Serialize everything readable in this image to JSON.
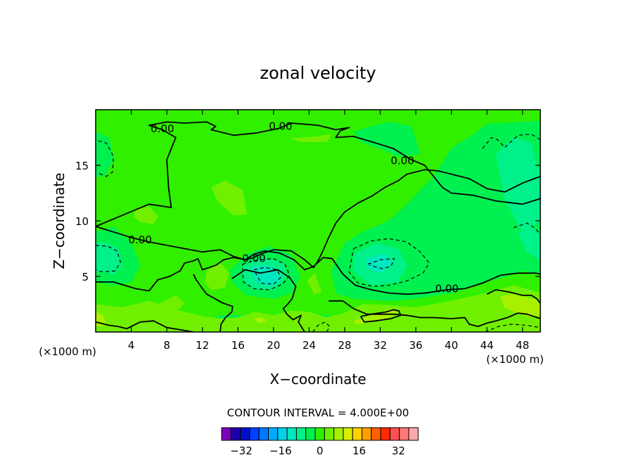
{
  "chart_data": {
    "type": "heatmap",
    "title": "zonal velocity",
    "xlabel": "X−coordinate",
    "ylabel": "Z−coordinate",
    "x_unit_left": "(×1000 m)",
    "x_unit_right": "(×1000 m)",
    "xlim": [
      0,
      50
    ],
    "ylim": [
      0,
      20
    ],
    "x_ticks": [
      4,
      8,
      12,
      16,
      20,
      24,
      28,
      32,
      36,
      40,
      44,
      48
    ],
    "y_ticks": [
      5,
      10,
      15
    ],
    "contour_interval_text": "CONTOUR INTERVAL = 4.000E+00",
    "contour_labels": [
      {
        "text": "0.00",
        "x": 7.5,
        "z": 18.3
      },
      {
        "text": "0.00",
        "x": 20.8,
        "z": 18.5
      },
      {
        "text": "0.00",
        "x": 34.5,
        "z": 15.4
      },
      {
        "text": "0.00",
        "x": 5.0,
        "z": 8.3
      },
      {
        "text": "0.00",
        "x": 17.8,
        "z": 6.6
      },
      {
        "text": "0.00",
        "x": 39.5,
        "z": 3.9
      }
    ],
    "colorbar": {
      "colors": [
        "#8000c0",
        "#1e00a8",
        "#0010c8",
        "#0040ff",
        "#0078ff",
        "#00aaff",
        "#00d4e8",
        "#00e8c0",
        "#00f08a",
        "#00f050",
        "#30f000",
        "#70f000",
        "#a8f000",
        "#d8ee00",
        "#ffd000",
        "#ffa000",
        "#ff6000",
        "#ff2a00",
        "#ff5050",
        "#ff7878",
        "#ffa8a8"
      ],
      "tick_labels": [
        "−32",
        "−16",
        "0",
        "16",
        "32"
      ],
      "tick_values": [
        -32,
        -16,
        0,
        16,
        32
      ]
    },
    "regions": [
      {
        "level": 0,
        "color": "#30f000",
        "xs": [
          0,
          50,
          50,
          0
        ],
        "zs": [
          0,
          0,
          20,
          20
        ]
      },
      {
        "level": -4,
        "color": "#00f050",
        "xs": [
          50,
          44,
          42,
          40,
          38,
          35,
          33,
          30,
          28,
          26.5,
          27,
          29,
          33,
          36,
          40,
          44,
          48,
          50
        ],
        "zs": [
          19,
          18.7,
          17.5,
          16.5,
          14,
          11.5,
          10,
          9,
          8,
          5.5,
          3.5,
          3,
          2.8,
          3,
          3.5,
          4.5,
          5.5,
          5.2
        ]
      },
      {
        "level": -4,
        "color": "#00f050",
        "xs": [
          0,
          2,
          4,
          5,
          4,
          2,
          0
        ],
        "zs": [
          9,
          9.5,
          8,
          6,
          4.5,
          4.2,
          4.5
        ]
      },
      {
        "level": -4,
        "color": "#00f050",
        "xs": [
          0,
          1.5,
          2,
          1,
          0
        ],
        "zs": [
          18,
          17.5,
          15.5,
          14,
          14
        ]
      },
      {
        "level": -4,
        "color": "#00f050",
        "xs": [
          15,
          17,
          19.5,
          22,
          23,
          22,
          20,
          17,
          15.5
        ],
        "zs": [
          5.5,
          7,
          7.7,
          7,
          5,
          3.5,
          3,
          3.3,
          4.3
        ]
      },
      {
        "level": -4,
        "color": "#00f050",
        "xs": [
          31,
          33,
          35.5,
          36.5,
          34,
          32,
          30,
          29
        ],
        "zs": [
          18.5,
          18.9,
          18.5,
          16,
          15.8,
          16.5,
          17,
          18
        ]
      },
      {
        "level": -4,
        "color": "#00f050",
        "xs": [
          12,
          14,
          16,
          17,
          14,
          12
        ],
        "zs": [
          0,
          0,
          0,
          1.5,
          1.5,
          0.8
        ]
      },
      {
        "level": -4,
        "color": "#00f050",
        "xs": [
          24,
          26,
          27.5,
          27,
          25.5,
          24
        ],
        "zs": [
          0,
          0,
          0,
          1.2,
          1.6,
          1
        ]
      },
      {
        "level": -4,
        "color": "#00f050",
        "xs": [
          36,
          39,
          40,
          39,
          37,
          36
        ],
        "zs": [
          0,
          0,
          0,
          0.8,
          1,
          0.6
        ]
      },
      {
        "level": -4,
        "color": "#00f050",
        "xs": [
          42,
          46,
          49,
          50,
          50,
          47,
          44,
          42
        ],
        "zs": [
          0,
          0,
          0,
          0,
          1.2,
          1.8,
          1.5,
          0.8
        ]
      },
      {
        "level": -8,
        "color": "#00f08a",
        "xs": [
          29,
          31.5,
          34,
          35,
          34,
          31,
          29
        ],
        "zs": [
          7,
          8,
          7.5,
          6,
          4.5,
          4.2,
          5.5
        ]
      },
      {
        "level": -8,
        "color": "#00f08a",
        "xs": [
          45,
          47,
          49,
          50,
          50,
          48,
          46
        ],
        "zs": [
          16,
          17.5,
          17,
          14,
          10,
          9,
          12
        ]
      },
      {
        "level": -8,
        "color": "#00f08a",
        "xs": [
          0,
          1.2,
          2.5,
          3,
          2,
          0
        ],
        "zs": [
          8,
          8,
          7.5,
          6,
          5.2,
          5.5
        ]
      },
      {
        "level": -8,
        "color": "#00f08a",
        "xs": [
          16.5,
          18.5,
          21,
          21.5,
          20,
          17.5,
          16.5
        ],
        "zs": [
          5.8,
          6.7,
          6.3,
          5,
          3.8,
          3.9,
          4.8
        ]
      },
      {
        "level": -8,
        "color": "#00f08a",
        "xs": [
          47.5,
          49,
          50,
          50,
          48.5
        ],
        "zs": [
          9,
          9.5,
          8.8,
          6.5,
          7.2
        ]
      },
      {
        "level": -12,
        "color": "#00e8c0",
        "xs": [
          17.5,
          19,
          20.5,
          20.8,
          19.5,
          18
        ],
        "zs": [
          5.8,
          6,
          5.6,
          4.6,
          4.1,
          4.6
        ]
      },
      {
        "level": -12,
        "color": "#00e8c0",
        "xs": [
          30.5,
          32.5,
          33.5,
          32,
          30.5
        ],
        "zs": [
          6.6,
          7,
          6.2,
          5.3,
          5.8
        ]
      },
      {
        "level": 4,
        "color": "#70f000",
        "xs": [
          0,
          3,
          6,
          8,
          10,
          12,
          14,
          16,
          18,
          20,
          22,
          24,
          26,
          28,
          30,
          33,
          36,
          40,
          44,
          47,
          50,
          50,
          0
        ],
        "zs": [
          2.5,
          2.2,
          2.8,
          2.2,
          1.8,
          1.4,
          1.2,
          1.3,
          1.8,
          1.5,
          1.9,
          1.8,
          1.3,
          1.7,
          2.5,
          2.4,
          2.2,
          2.8,
          3.5,
          4.2,
          3.5,
          0,
          0
        ]
      },
      {
        "level": 4,
        "color": "#70f000",
        "xs": [
          12.5,
          14,
          15,
          14.5,
          13,
          12.3
        ],
        "zs": [
          5.5,
          6.2,
          5.3,
          4,
          3.8,
          4.5
        ]
      },
      {
        "level": 4,
        "color": "#70f000",
        "xs": [
          4.5,
          6,
          7,
          6.5,
          5,
          4.3
        ],
        "zs": [
          11,
          11.3,
          10.4,
          9.7,
          9.9,
          10.4
        ]
      },
      {
        "level": 4,
        "color": "#70f000",
        "xs": [
          13,
          14.5,
          16.5,
          17,
          15.5,
          13.8
        ],
        "zs": [
          13,
          13.6,
          12.8,
          10.6,
          10.5,
          11.7
        ]
      },
      {
        "level": 4,
        "color": "#70f000",
        "xs": [
          23.8,
          24.6,
          25.4,
          24.6
        ],
        "zs": [
          4.6,
          5.3,
          3.6,
          3.4
        ]
      },
      {
        "level": 4,
        "color": "#70f000",
        "xs": [
          22,
          25,
          26.5,
          26,
          23.2
        ],
        "zs": [
          17.4,
          17.6,
          17.8,
          17.1,
          17.1
        ]
      },
      {
        "level": 4,
        "color": "#70f000",
        "xs": [
          7,
          9,
          10,
          9,
          7.2
        ],
        "zs": [
          2.5,
          3.3,
          2.6,
          1.8,
          1.9
        ]
      },
      {
        "level": 8,
        "color": "#a8f000",
        "xs": [
          29,
          31,
          33,
          34,
          33,
          31,
          29.3
        ],
        "zs": [
          1,
          1.5,
          2,
          1.8,
          1.3,
          0.9,
          0.7
        ]
      },
      {
        "level": 8,
        "color": "#a8f000",
        "xs": [
          45.5,
          47,
          48.5,
          50,
          50,
          48.5,
          46
        ],
        "zs": [
          3.2,
          3.4,
          3.1,
          2.8,
          1.5,
          1.4,
          2.2
        ]
      },
      {
        "level": 8,
        "color": "#a8f000",
        "xs": [
          17.8,
          18.6,
          19.2,
          18.4
        ],
        "zs": [
          1.2,
          1.3,
          1,
          0.8
        ]
      },
      {
        "level": 8,
        "color": "#a8f000",
        "xs": [
          0,
          0.8,
          1.2,
          0
        ],
        "zs": [
          1.8,
          1.5,
          0.6,
          0.5
        ]
      }
    ],
    "solid_contours": [
      {
        "xs": [
          0,
          3,
          6,
          8.5,
          8.2,
          8,
          9,
          7.5,
          6,
          8,
          10,
          12.5,
          13.5,
          13,
          14,
          15.5,
          18,
          20.5,
          22,
          25,
          27,
          28.5,
          27.5,
          27,
          29,
          31.5,
          33.5,
          35.5,
          37,
          38,
          39,
          40,
          42.5,
          45,
          48,
          50
        ],
        "zs": [
          9.5,
          10.5,
          11.5,
          11.2,
          13,
          15.5,
          17.5,
          18.2,
          18.6,
          18.9,
          18.8,
          18.9,
          18.5,
          18.2,
          18,
          17.7,
          17.9,
          18.3,
          18.8,
          18.6,
          18.2,
          18.4,
          18.1,
          17.5,
          17.6,
          17,
          16.5,
          15.5,
          15,
          14,
          13,
          12.5,
          12.3,
          11.8,
          11.5,
          12
        ]
      },
      {
        "xs": [
          0,
          2,
          4,
          6,
          8,
          10,
          12,
          14,
          15.5,
          16.8,
          17.8,
          18.5
        ],
        "zs": [
          9.5,
          9,
          8.5,
          8.1,
          7.8,
          7.5,
          7.2,
          7.4,
          6.8,
          6.5,
          6.7,
          7
        ]
      },
      {
        "xs": [
          18.5,
          20,
          22,
          23.5,
          24.5,
          25,
          25.5,
          26.2,
          27,
          28,
          29.5,
          31,
          32.5,
          34,
          35,
          36,
          37,
          38.5,
          40,
          42,
          44,
          46,
          48,
          50
        ],
        "zs": [
          7,
          7.4,
          7.3,
          6.5,
          5.8,
          6.4,
          7.2,
          8.5,
          9.8,
          10.8,
          11.6,
          12.2,
          13,
          13.6,
          14.2,
          14.4,
          14.6,
          14.5,
          14.2,
          13.8,
          12.9,
          12.6,
          13.4,
          14
        ]
      },
      {
        "xs": [
          0,
          2,
          4.5,
          6,
          7,
          8.3,
          9.5,
          10,
          11,
          11.5,
          12,
          13.5,
          14.4,
          15.5,
          16.8,
          17.8,
          19,
          20.7,
          22.3,
          23.5,
          24.5,
          25.6,
          26.6,
          27.8,
          29.2,
          31,
          33,
          35,
          37,
          39.5,
          41.5,
          43.5,
          45.5,
          47.5,
          49.5,
          50
        ],
        "zs": [
          4.5,
          4.5,
          3.9,
          3.7,
          4.7,
          5,
          5.5,
          6.2,
          6.4,
          6.6,
          5.6,
          6,
          6.5,
          6.7,
          6.5,
          7,
          7.3,
          7.1,
          6.5,
          5.6,
          5.9,
          6.7,
          6.6,
          5.2,
          4.2,
          3.8,
          3.5,
          3.4,
          3.5,
          3.8,
          3.9,
          4.4,
          5.1,
          5.3,
          5.3,
          5.2
        ]
      },
      {
        "xs": [
          15.3,
          16.8,
          18.5,
          20.5,
          21.8,
          22.5,
          22.1,
          21.6,
          21.1,
          21.5,
          22.2,
          23.1,
          22.8,
          23.5
        ],
        "zs": [
          4.8,
          5.6,
          5.3,
          5.6,
          4.9,
          4.1,
          3,
          2.5,
          2.1,
          1.6,
          1.1,
          1.5,
          0.9,
          0
        ]
      },
      {
        "xs": [
          11,
          11.3,
          12,
          12.5,
          13.4,
          14.3,
          15.4,
          15.3,
          14.6,
          14.1,
          14
        ],
        "zs": [
          5.2,
          4.7,
          3.9,
          3.4,
          3,
          2.6,
          2.3,
          1.8,
          1.3,
          0.7,
          0
        ]
      },
      {
        "xs": [
          29.8,
          31,
          32.6,
          33.5,
          34.1,
          34.3,
          33.2,
          31.5,
          30.2,
          29.8
        ],
        "zs": [
          1.4,
          1.6,
          1.8,
          2,
          1.9,
          1.5,
          1.2,
          1,
          0.9,
          1.4
        ]
      },
      {
        "xs": [
          44,
          45,
          46.5,
          48,
          49,
          49.6,
          50
        ],
        "zs": [
          3.4,
          3.8,
          3.6,
          3.3,
          3.3,
          3,
          2.6
        ]
      },
      {
        "xs": [
          26.2,
          27.8,
          29,
          30.5,
          32,
          33.5,
          35,
          36.5,
          38,
          40,
          41.5,
          42,
          43,
          44,
          45,
          46.3,
          47.5,
          48.5,
          50
        ],
        "zs": [
          2.8,
          2.8,
          2.1,
          1.6,
          1.6,
          1.6,
          1.5,
          1.3,
          1.3,
          1.2,
          1.3,
          0.7,
          0.5,
          0.8,
          1,
          1.3,
          1.7,
          1.6,
          1.2
        ]
      },
      {
        "xs": [
          0,
          1.5,
          2.5,
          3.5,
          5,
          6.5,
          8,
          9.5,
          11
        ],
        "zs": [
          0.9,
          0.6,
          0.5,
          0.3,
          0.9,
          1,
          0.4,
          0.2,
          0
        ]
      }
    ],
    "dashed_contours": [
      {
        "xs": [
          43.5,
          44.5,
          45.2,
          46,
          47.5,
          49,
          50
        ],
        "zs": [
          16.5,
          17.5,
          17.3,
          16.6,
          17.7,
          17.8,
          17.3
        ]
      },
      {
        "xs": [
          0.3,
          1.2,
          2,
          1.9,
          1.2,
          0.3
        ],
        "zs": [
          17.2,
          17,
          15.8,
          14.4,
          14,
          14.3
        ]
      },
      {
        "xs": [
          29,
          31,
          33,
          35,
          36.5,
          37.5,
          36.8,
          35,
          33,
          31.2,
          29.5,
          28.5,
          29
        ],
        "zs": [
          7.5,
          8.2,
          8.4,
          8.1,
          7.2,
          6.2,
          5.3,
          4.6,
          4.2,
          4.1,
          4.4,
          5.4,
          7.5
        ]
      },
      {
        "xs": [
          30.6,
          32,
          33.6,
          33.2,
          32.2,
          30.8
        ],
        "zs": [
          6.1,
          6.5,
          6.6,
          5.9,
          5.7,
          6
        ]
      },
      {
        "xs": [
          0,
          1.4,
          2.4,
          2.8,
          2.2,
          0.8,
          0
        ],
        "zs": [
          7.8,
          7.7,
          7.3,
          6.3,
          5.5,
          5.4,
          5.6
        ]
      },
      {
        "xs": [
          16.5,
          18.2,
          20,
          21.3,
          21.8,
          21,
          19.5,
          17.8,
          16.6,
          16.5
        ],
        "zs": [
          6.1,
          6.5,
          6.6,
          6.1,
          5.1,
          4.3,
          3.8,
          3.9,
          4.5,
          6.1
        ]
      },
      {
        "xs": [
          17.8,
          19,
          20.4,
          20.8,
          20,
          18.6,
          17.8
        ],
        "zs": [
          5.6,
          5.8,
          5.6,
          4.9,
          4.3,
          4.4,
          5.6
        ]
      },
      {
        "xs": [
          47,
          48.5,
          49.3,
          50
        ],
        "zs": [
          9.4,
          9.8,
          9.4,
          8.8
        ]
      },
      {
        "xs": [
          24.4,
          25,
          25.8,
          26.3,
          26
        ],
        "zs": [
          0,
          0.6,
          0.9,
          0.5,
          0
        ]
      },
      {
        "xs": [
          43.8,
          45.3,
          46.8,
          48.5,
          50
        ],
        "zs": [
          0,
          0.5,
          0.7,
          0.6,
          0.4
        ]
      }
    ]
  }
}
